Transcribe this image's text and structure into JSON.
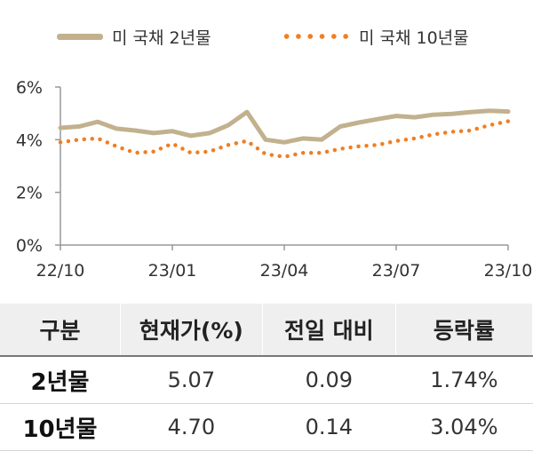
{
  "legend": {
    "series_2y": "미 국채 2년물",
    "series_10y": "미 국채 10년물"
  },
  "colors": {
    "series_2y": "#c2b18e",
    "series_10y": "#f07e22",
    "axis": "#999999"
  },
  "chart_data": {
    "type": "line",
    "title": "",
    "xlabel": "",
    "ylabel": "",
    "ylim": [
      0,
      6
    ],
    "y_ticks": [
      "0%",
      "2%",
      "4%",
      "6%"
    ],
    "x_ticks": [
      "22/10",
      "23/01",
      "23/04",
      "23/07",
      "23/10"
    ],
    "grid": false,
    "legend_position": "top",
    "x": [
      "22/10",
      "22/10",
      "22/11",
      "22/11",
      "22/12",
      "22/12",
      "23/01",
      "23/01",
      "23/02",
      "23/02",
      "23/03",
      "23/03",
      "23/04",
      "23/04",
      "23/05",
      "23/05",
      "23/06",
      "23/06",
      "23/07",
      "23/07",
      "23/08",
      "23/08",
      "23/09",
      "23/09",
      "23/10"
    ],
    "series": [
      {
        "name": "미 국채 2년물",
        "style": "solid",
        "values": [
          4.45,
          4.5,
          4.68,
          4.42,
          4.35,
          4.25,
          4.32,
          4.15,
          4.25,
          4.55,
          5.05,
          4.0,
          3.9,
          4.05,
          4.0,
          4.5,
          4.65,
          4.78,
          4.9,
          4.85,
          4.95,
          4.98,
          5.05,
          5.1,
          5.07
        ]
      },
      {
        "name": "미 국채 10년물",
        "style": "dotted",
        "values": [
          3.9,
          4.0,
          4.05,
          3.75,
          3.5,
          3.55,
          3.85,
          3.5,
          3.55,
          3.8,
          3.95,
          3.45,
          3.35,
          3.5,
          3.5,
          3.65,
          3.75,
          3.8,
          3.95,
          4.05,
          4.2,
          4.3,
          4.35,
          4.55,
          4.7
        ]
      }
    ]
  },
  "table": {
    "headers": [
      "구분",
      "현재가(%)",
      "전일 대비",
      "등락률"
    ],
    "rows": [
      [
        "2년물",
        "5.07",
        "0.09",
        "1.74%"
      ],
      [
        "10년물",
        "4.70",
        "0.14",
        "3.04%"
      ]
    ]
  }
}
